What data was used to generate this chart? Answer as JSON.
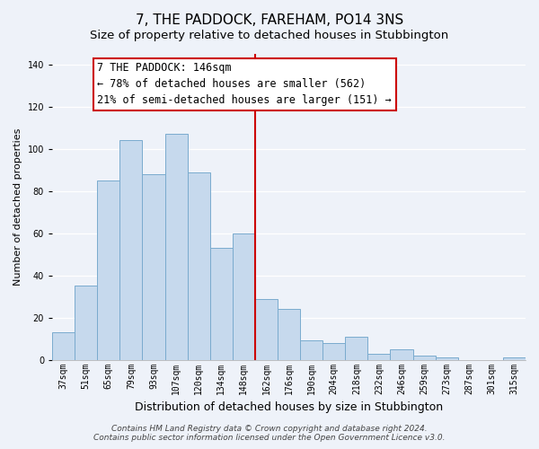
{
  "title": "7, THE PADDOCK, FAREHAM, PO14 3NS",
  "subtitle": "Size of property relative to detached houses in Stubbington",
  "xlabel": "Distribution of detached houses by size in Stubbington",
  "ylabel": "Number of detached properties",
  "bin_labels": [
    "37sqm",
    "51sqm",
    "65sqm",
    "79sqm",
    "93sqm",
    "107sqm",
    "120sqm",
    "134sqm",
    "148sqm",
    "162sqm",
    "176sqm",
    "190sqm",
    "204sqm",
    "218sqm",
    "232sqm",
    "246sqm",
    "259sqm",
    "273sqm",
    "287sqm",
    "301sqm",
    "315sqm"
  ],
  "bar_values": [
    13,
    35,
    85,
    104,
    88,
    107,
    89,
    53,
    60,
    29,
    24,
    9,
    8,
    11,
    3,
    5,
    2,
    1,
    0,
    0,
    1
  ],
  "bar_color": "#c6d9ed",
  "bar_edge_color": "#7aabce",
  "vline_index": 8,
  "vline_color": "#cc0000",
  "annotation_line1": "7 THE PADDOCK: 146sqm",
  "annotation_line2": "← 78% of detached houses are smaller (562)",
  "annotation_line3": "21% of semi-detached houses are larger (151) →",
  "annotation_box_color": "#ffffff",
  "annotation_box_edge_color": "#cc0000",
  "ylim": [
    0,
    145
  ],
  "yticks": [
    0,
    20,
    40,
    60,
    80,
    100,
    120,
    140
  ],
  "footer_line1": "Contains HM Land Registry data © Crown copyright and database right 2024.",
  "footer_line2": "Contains public sector information licensed under the Open Government Licence v3.0.",
  "bg_color": "#eef2f9",
  "plot_bg_color": "#eef2f9",
  "title_fontsize": 11,
  "subtitle_fontsize": 9.5,
  "xlabel_fontsize": 9,
  "ylabel_fontsize": 8,
  "tick_fontsize": 7,
  "annotation_fontsize": 8.5,
  "footer_fontsize": 6.5
}
